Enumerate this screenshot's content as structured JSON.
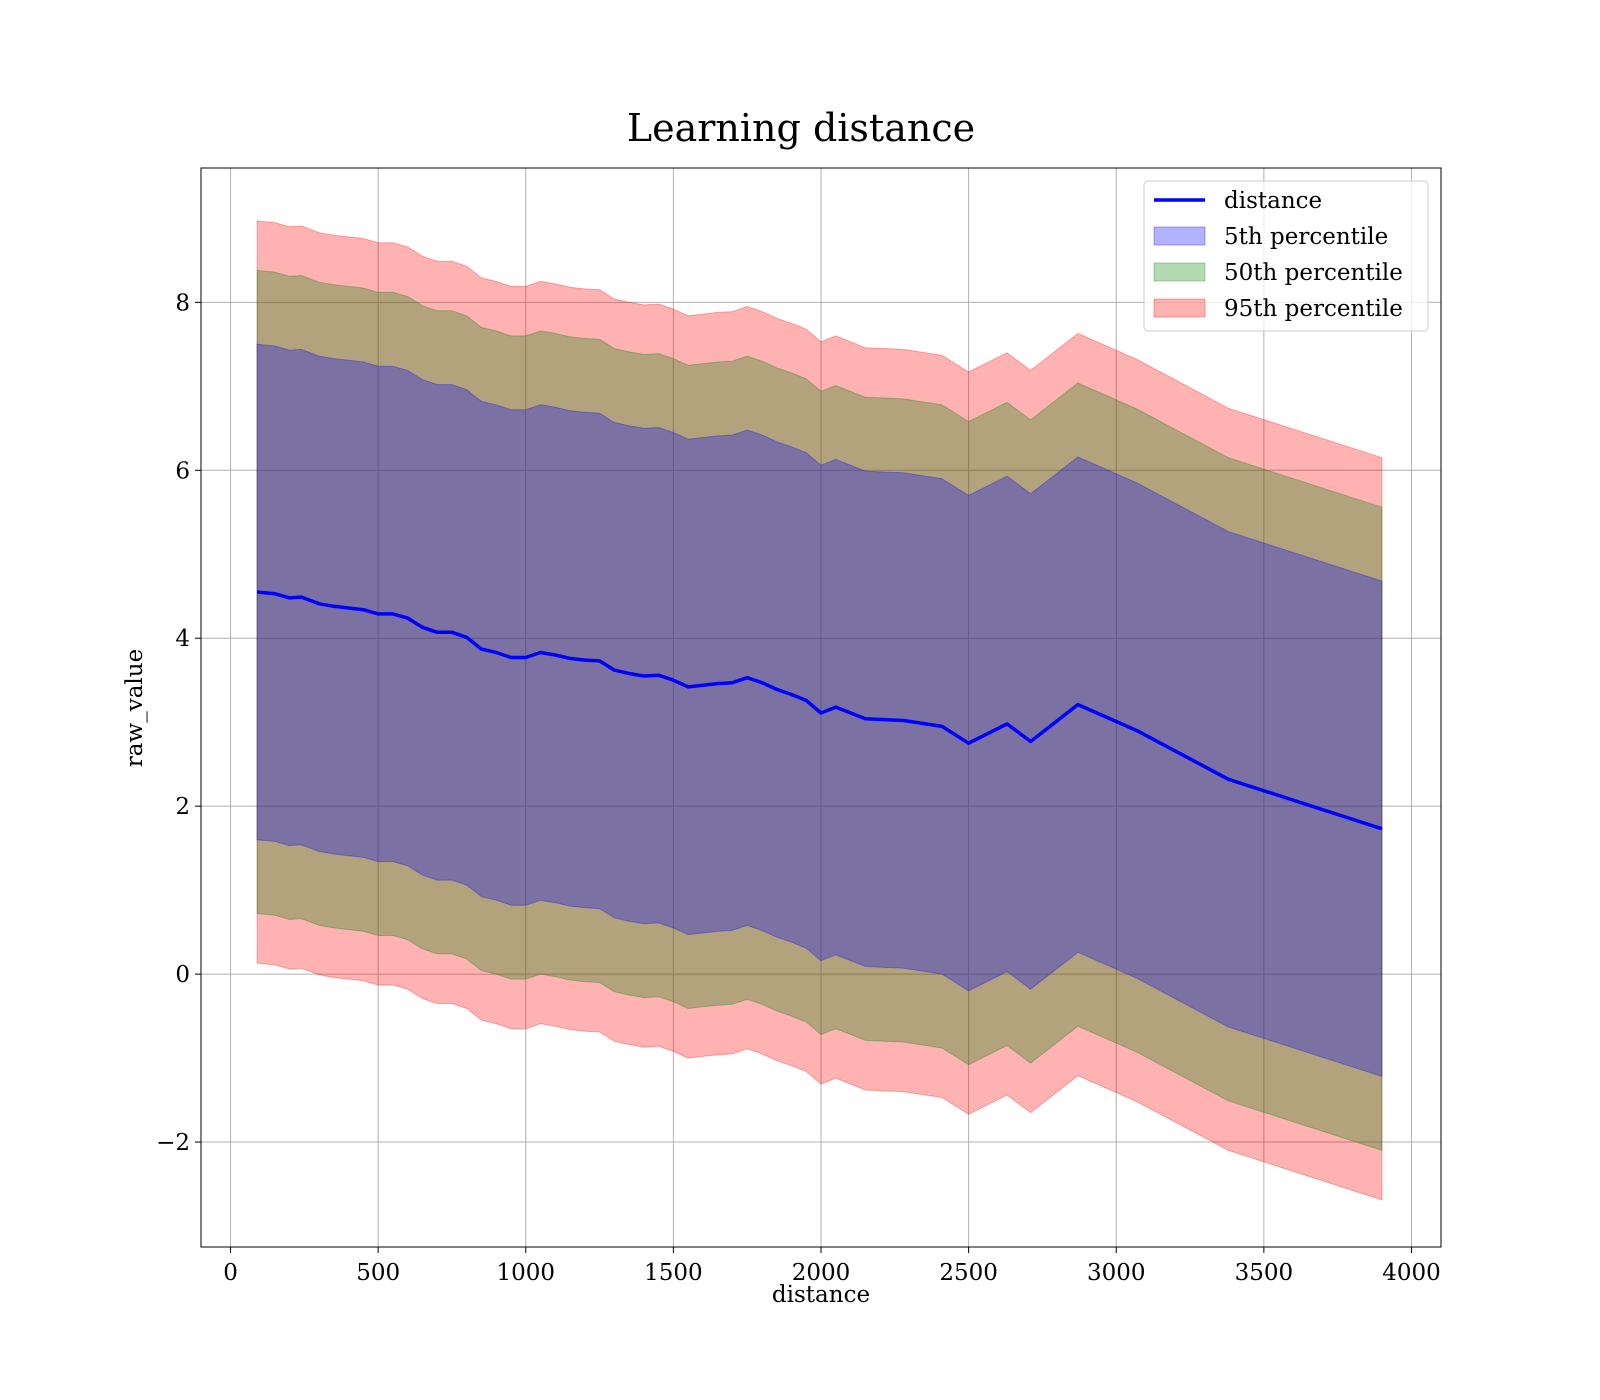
{
  "chart_data": {
    "type": "area",
    "title": "Learning distance",
    "xlabel": "distance",
    "ylabel": "raw_value",
    "xlim": [
      -100,
      4100
    ],
    "ylim": [
      -3.25,
      9.6
    ],
    "xticks": [
      0,
      500,
      1000,
      1500,
      2000,
      2500,
      3000,
      3500,
      4000
    ],
    "xtick_labels": [
      "0",
      "500",
      "1000",
      "1500",
      "2000",
      "2500",
      "3000",
      "3500",
      "4000"
    ],
    "yticks": [
      -2,
      0,
      2,
      4,
      6,
      8
    ],
    "ytick_labels": [
      "−2",
      "0",
      "2",
      "4",
      "6",
      "8"
    ],
    "grid": true,
    "legend_position": "top-right",
    "x": [
      90,
      150,
      200,
      240,
      300,
      350,
      400,
      450,
      500,
      550,
      600,
      650,
      700,
      750,
      800,
      850,
      900,
      950,
      1000,
      1050,
      1100,
      1150,
      1200,
      1250,
      1300,
      1350,
      1400,
      1450,
      1500,
      1550,
      1600,
      1650,
      1700,
      1750,
      1800,
      1850,
      1900,
      1950,
      2000,
      2050,
      2150,
      2280,
      2410,
      2500,
      2630,
      2710,
      2870,
      3070,
      3380,
      3900
    ],
    "series": [
      {
        "name": "distance",
        "kind": "line",
        "color": "#0000ff",
        "values": [
          4.55,
          4.53,
          4.48,
          4.49,
          4.41,
          4.38,
          4.36,
          4.34,
          4.29,
          4.29,
          4.24,
          4.13,
          4.07,
          4.07,
          4.01,
          3.87,
          3.83,
          3.77,
          3.77,
          3.83,
          3.8,
          3.76,
          3.74,
          3.73,
          3.62,
          3.58,
          3.55,
          3.56,
          3.5,
          3.42,
          3.44,
          3.46,
          3.47,
          3.53,
          3.47,
          3.39,
          3.33,
          3.26,
          3.11,
          3.18,
          3.04,
          3.02,
          2.95,
          2.75,
          2.98,
          2.77,
          3.21,
          2.9,
          2.32,
          1.73
        ]
      },
      {
        "name": "5th percentile",
        "kind": "band",
        "color": "#0000ff",
        "opacity": 0.3,
        "offset": 2.95
      },
      {
        "name": "50th percentile",
        "kind": "band",
        "color": "#008000",
        "opacity": 0.3,
        "offset": 3.83
      },
      {
        "name": "95th percentile",
        "kind": "band",
        "color": "#ff0000",
        "opacity": 0.3,
        "offset": 4.42
      }
    ]
  }
}
